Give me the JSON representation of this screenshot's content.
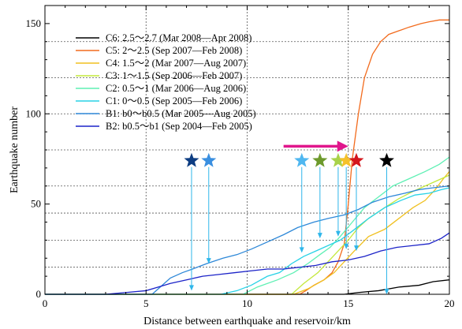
{
  "chart_data": {
    "type": "line",
    "xlabel": "Distance between earthquake and reservoir/km",
    "ylabel": "Earthquake number",
    "xlim": [
      0,
      20
    ],
    "ylim": [
      0,
      160
    ],
    "xticks": [
      0,
      5,
      10,
      15,
      20
    ],
    "yticks": [
      0,
      50,
      100,
      150
    ],
    "grid": "dashed-at-15-30-45-60-80-100-120-140",
    "legend_position": "top-left",
    "series": [
      {
        "name": "C6: 2.5～2.7  (Mar 2008—Apr 2008)",
        "color": "#000000",
        "x": [
          14.8,
          15.5,
          16.5,
          17.5,
          18.5,
          19.2,
          20
        ],
        "y": [
          0,
          1,
          2,
          4,
          5,
          7,
          8
        ]
      },
      {
        "name": "C5: 2～2.5     (Sep 2007—Feb 2008)",
        "color": "#f26b1d",
        "x": [
          12.6,
          12.9,
          13.3,
          13.8,
          14.2,
          14.5,
          14.8,
          15.0,
          15.2,
          15.5,
          15.8,
          16.2,
          16.6,
          17.0,
          17.5,
          18.0,
          18.6,
          19.0,
          19.5,
          20
        ],
        "y": [
          0,
          2,
          5,
          8,
          12,
          18,
          28,
          50,
          75,
          100,
          120,
          133,
          140,
          144,
          146,
          148,
          150,
          151,
          152,
          152
        ]
      },
      {
        "name": "C4: 1.5～2     (Mar 2007—Aug 2007)",
        "color": "#f0c020",
        "x": [
          12.3,
          13.0,
          13.8,
          14.3,
          14.8,
          15.3,
          16.0,
          16.8,
          17.5,
          18.2,
          18.8,
          19.3,
          19.7,
          20
        ],
        "y": [
          0,
          3,
          8,
          12,
          18,
          24,
          32,
          36,
          42,
          48,
          52,
          58,
          64,
          68
        ]
      },
      {
        "name": "C3: 1～1.5      (Sep 2006—Feb 2007)",
        "color": "#c4e83c",
        "x": [
          12.2,
          12.8,
          13.5,
          14.0,
          14.5,
          15.0,
          15.5,
          16.0,
          16.8,
          17.5,
          18.2,
          18.8,
          19.4,
          20
        ],
        "y": [
          0,
          6,
          12,
          18,
          24,
          30,
          37,
          42,
          48,
          53,
          57,
          60,
          63,
          66
        ]
      },
      {
        "name": "C2: 0.5～1     (Mar 2006—Aug 2006)",
        "color": "#5ef0b4",
        "x": [
          9.8,
          10.5,
          11.5,
          12.3,
          13.0,
          13.6,
          14.1,
          14.6,
          15.2,
          15.8,
          16.5,
          17.2,
          18.0,
          18.8,
          19.5,
          20
        ],
        "y": [
          0,
          4,
          8,
          12,
          17,
          22,
          26,
          32,
          40,
          48,
          54,
          60,
          64,
          68,
          72,
          76
        ]
      },
      {
        "name": "C1: 0～0.5     (Sep 2005—Feb 2006)",
        "color": "#28d2e6",
        "x": [
          8.7,
          9.5,
          10.2,
          11.0,
          11.6,
          12.2,
          12.8,
          13.4,
          14.0,
          14.6,
          15.2,
          16.0,
          16.8,
          17.6,
          18.3,
          19.0,
          19.6,
          20
        ],
        "y": [
          0,
          2,
          5,
          10,
          12,
          17,
          21,
          24,
          27,
          30,
          35,
          42,
          48,
          52,
          55,
          56,
          58,
          59
        ]
      },
      {
        "name": "B1: b0～b0.5 (Mar 2005—Aug 2005)",
        "color": "#2e88d8",
        "x": [
          5.3,
          5.7,
          6.2,
          6.8,
          7.3,
          8.0,
          8.8,
          9.5,
          10.2,
          11.0,
          11.8,
          12.5,
          13.3,
          14.0,
          14.8,
          15.5,
          16.2,
          17.0,
          17.8,
          18.5,
          19.2,
          20
        ],
        "y": [
          0,
          4,
          9,
          12,
          14,
          17,
          20,
          22,
          25,
          29,
          33,
          37,
          40,
          42,
          44,
          47,
          51,
          54,
          56,
          58,
          59,
          60
        ]
      },
      {
        "name": "B2: b0.5～b1 (Sep 2004—Feb 2005)",
        "color": "#1c23c8",
        "x": [
          3.0,
          4.0,
          5.0,
          5.6,
          6.2,
          7.0,
          7.8,
          8.6,
          9.4,
          10.2,
          11.0,
          11.8,
          12.6,
          13.4,
          14.2,
          15.0,
          15.8,
          16.6,
          17.4,
          18.2,
          19.0,
          19.6,
          20
        ],
        "y": [
          0,
          1,
          2,
          4,
          6,
          8,
          10,
          11,
          12,
          13,
          14,
          14,
          15,
          16,
          18,
          19,
          21,
          24,
          26,
          27,
          28,
          31,
          34
        ]
      }
    ],
    "annotations": {
      "arrow": {
        "color": "#e0168c",
        "x_start": 11.8,
        "x_end": 15.0,
        "y": 82
      },
      "stars": [
        {
          "x": 7.25,
          "y": 74,
          "color": "#0d3d82",
          "drop_y": 2
        },
        {
          "x": 8.1,
          "y": 74,
          "color": "#3a8fe0",
          "drop_y": 17
        },
        {
          "x": 12.7,
          "y": 74,
          "color": "#4fb7f0",
          "drop_y": 23
        },
        {
          "x": 13.6,
          "y": 74,
          "color": "#6d9a2c",
          "drop_y": 31
        },
        {
          "x": 14.5,
          "y": 74,
          "color": "#a8d24a",
          "drop_y": 32
        },
        {
          "x": 14.9,
          "y": 74,
          "color": "#f5c12a",
          "drop_y": 25
        },
        {
          "x": 15.4,
          "y": 74,
          "color": "#d4161c",
          "drop_y": 24
        },
        {
          "x": 16.9,
          "y": 74,
          "color": "#000000",
          "drop_y": 0
        }
      ],
      "drop_line_color": "#2eb6ea"
    }
  }
}
